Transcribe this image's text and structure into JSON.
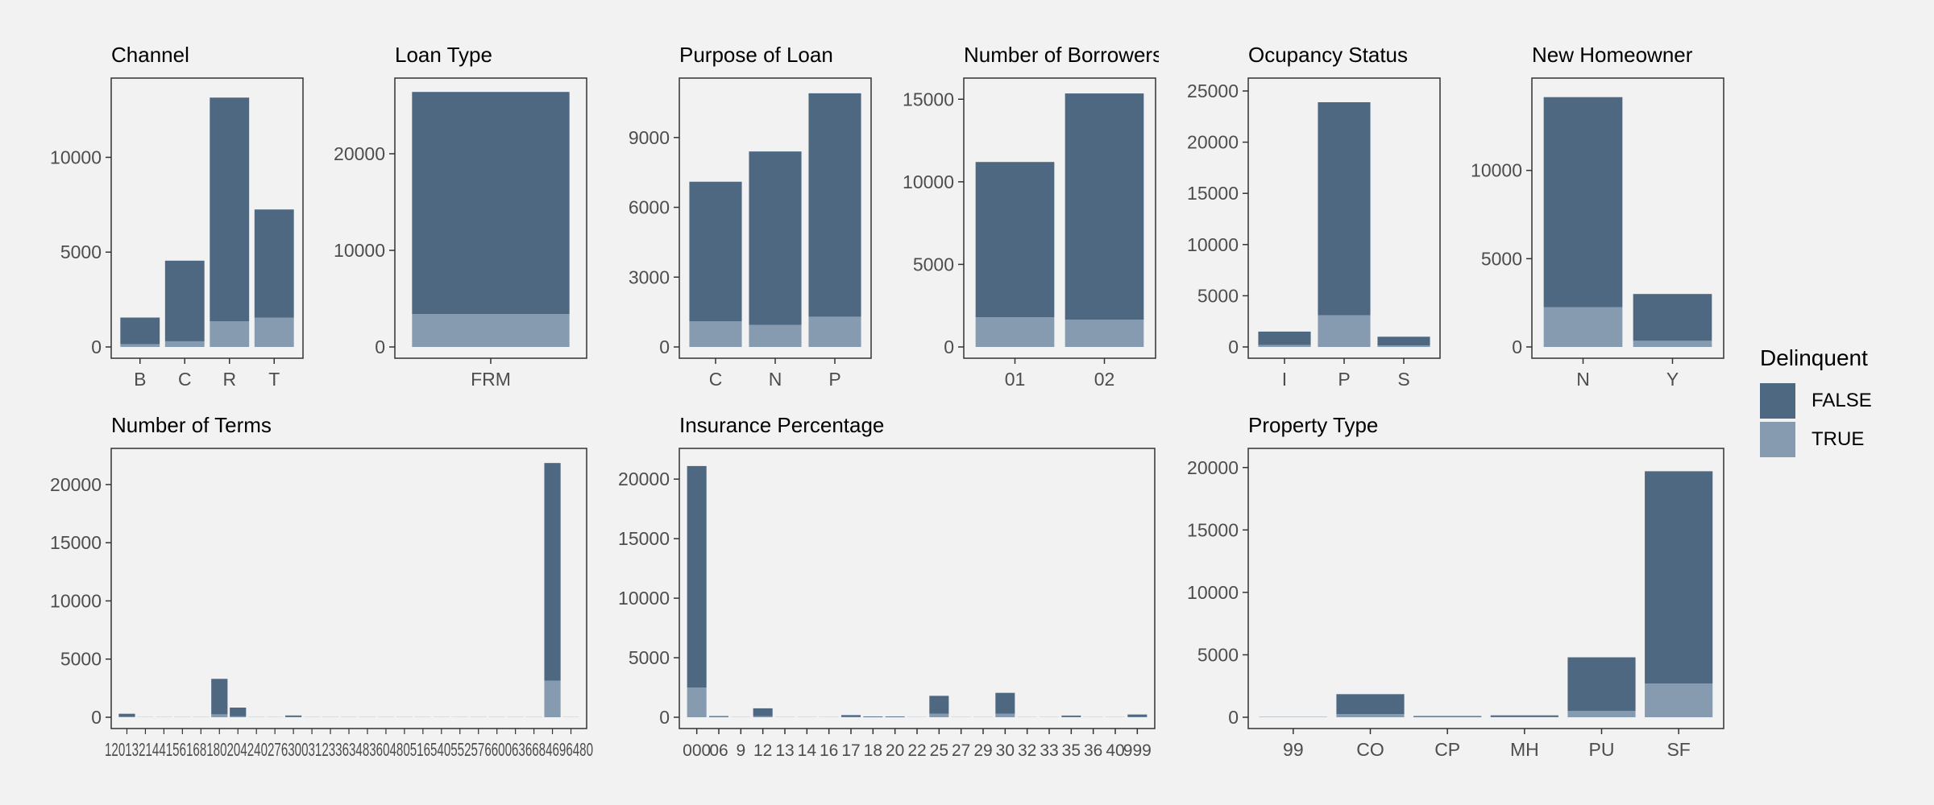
{
  "colors": {
    "false": "#4e6882",
    "true": "#879bb0",
    "background": "#f2f2f2",
    "panel_border": "#333333"
  },
  "legend": {
    "title": "Delinquent",
    "items": [
      {
        "label": "FALSE",
        "color": "#4e6882"
      },
      {
        "label": "TRUE",
        "color": "#879bb0"
      }
    ]
  },
  "chart_data": [
    {
      "title": "Channel",
      "type": "bar",
      "stacked": true,
      "categories": [
        "B",
        "C",
        "R",
        "T"
      ],
      "ylim": [
        0,
        13500
      ],
      "yticks": [
        0,
        5000,
        10000
      ],
      "series": [
        {
          "name": "FALSE",
          "values": [
            1400,
            4250,
            11800,
            5700
          ]
        },
        {
          "name": "TRUE",
          "values": [
            150,
            300,
            1350,
            1550
          ]
        }
      ]
    },
    {
      "title": "Loan Type",
      "type": "bar",
      "stacked": true,
      "categories": [
        "FRM"
      ],
      "ylim": [
        0,
        26500
      ],
      "yticks": [
        0,
        10000,
        20000
      ],
      "series": [
        {
          "name": "FALSE",
          "values": [
            23000
          ]
        },
        {
          "name": "TRUE",
          "values": [
            3400
          ]
        }
      ]
    },
    {
      "title": "Purpose of Loan",
      "type": "bar",
      "stacked": true,
      "categories": [
        "C",
        "N",
        "P"
      ],
      "ylim": [
        0,
        11000
      ],
      "yticks": [
        0,
        3000,
        6000,
        9000
      ],
      "series": [
        {
          "name": "FALSE",
          "values": [
            6000,
            7450,
            9600
          ]
        },
        {
          "name": "TRUE",
          "values": [
            1100,
            950,
            1300
          ]
        }
      ]
    },
    {
      "title": "Number of Borrowers",
      "type": "bar",
      "stacked": true,
      "categories": [
        "01",
        "02"
      ],
      "ylim": [
        0,
        15500
      ],
      "yticks": [
        0,
        5000,
        10000,
        15000
      ],
      "series": [
        {
          "name": "FALSE",
          "values": [
            9400,
            13700
          ]
        },
        {
          "name": "TRUE",
          "values": [
            1800,
            1650
          ]
        }
      ]
    },
    {
      "title": "Ocupancy Status",
      "type": "bar",
      "stacked": true,
      "categories": [
        "I",
        "P",
        "S"
      ],
      "ylim": [
        0,
        25000
      ],
      "yticks": [
        0,
        5000,
        10000,
        15000,
        20000,
        25000
      ],
      "series": [
        {
          "name": "FALSE",
          "values": [
            1300,
            20800,
            850
          ]
        },
        {
          "name": "TRUE",
          "values": [
            200,
            3100,
            150
          ]
        }
      ]
    },
    {
      "title": "New Homeowner",
      "type": "bar",
      "stacked": true,
      "categories": [
        "N",
        "Y"
      ],
      "ylim": [
        0,
        14500
      ],
      "yticks": [
        0,
        5000,
        10000
      ],
      "series": [
        {
          "name": "FALSE",
          "values": [
            11900,
            2650
          ]
        },
        {
          "name": "TRUE",
          "values": [
            2250,
            350
          ]
        }
      ]
    },
    {
      "title": "Number of Terms",
      "type": "bar",
      "stacked": true,
      "categories": [
        "120",
        "132",
        "144",
        "156",
        "168",
        "180",
        "204",
        "240",
        "276",
        "300",
        "312",
        "336",
        "348",
        "360",
        "480",
        "516",
        "540",
        "552",
        "576",
        "600",
        "636",
        "684",
        "696",
        "360b",
        "480b"
      ],
      "xtick_text": "120132144156168180204240276300312336348360480516540552576600636684696480",
      "ylim": [
        0,
        22000
      ],
      "yticks": [
        0,
        5000,
        10000,
        15000,
        20000
      ],
      "series": [
        {
          "name": "FALSE",
          "values": [
            250,
            10,
            10,
            10,
            10,
            3050,
            750,
            10,
            10,
            130,
            10,
            10,
            10,
            10,
            10,
            10,
            10,
            10,
            10,
            10,
            10,
            10,
            10,
            18700,
            10
          ]
        },
        {
          "name": "TRUE",
          "values": [
            50,
            0,
            0,
            0,
            0,
            250,
            80,
            0,
            0,
            20,
            0,
            0,
            0,
            0,
            0,
            0,
            0,
            0,
            0,
            0,
            0,
            0,
            0,
            3150,
            0
          ]
        }
      ]
    },
    {
      "title": "Insurance Percentage",
      "type": "bar",
      "stacked": true,
      "categories": [
        "000",
        "06",
        "9",
        "12",
        "13",
        "14",
        "16",
        "17",
        "18",
        "20",
        "22",
        "25",
        "27",
        "29",
        "30",
        "32",
        "33",
        "35",
        "36",
        "40",
        "999"
      ],
      "xticks": [
        "000",
        "06",
        "9",
        "12",
        "13",
        "14",
        "16",
        "17",
        "18",
        "20",
        "22",
        "25",
        "27",
        "29",
        "30",
        "32",
        "33",
        "35",
        "36",
        "40",
        "999"
      ],
      "ylim": [
        0,
        21500
      ],
      "yticks": [
        0,
        5000,
        10000,
        15000,
        20000
      ],
      "series": [
        {
          "name": "FALSE",
          "values": [
            18600,
            80,
            10,
            650,
            10,
            10,
            10,
            150,
            60,
            60,
            10,
            1500,
            10,
            10,
            1750,
            10,
            10,
            120,
            10,
            10,
            200
          ]
        },
        {
          "name": "TRUE",
          "values": [
            2500,
            20,
            0,
            100,
            0,
            0,
            0,
            30,
            10,
            10,
            0,
            300,
            0,
            0,
            300,
            0,
            0,
            20,
            0,
            0,
            30
          ]
        }
      ]
    },
    {
      "title": "Property Type",
      "type": "bar",
      "stacked": true,
      "categories": [
        "99",
        "CO",
        "CP",
        "MH",
        "PU",
        "SF"
      ],
      "ylim": [
        0,
        20500
      ],
      "yticks": [
        0,
        5000,
        10000,
        15000,
        20000
      ],
      "series": [
        {
          "name": "FALSE",
          "values": [
            20,
            1600,
            80,
            130,
            4300,
            17000
          ]
        },
        {
          "name": "TRUE",
          "values": [
            0,
            250,
            20,
            20,
            500,
            2700
          ]
        }
      ]
    }
  ]
}
